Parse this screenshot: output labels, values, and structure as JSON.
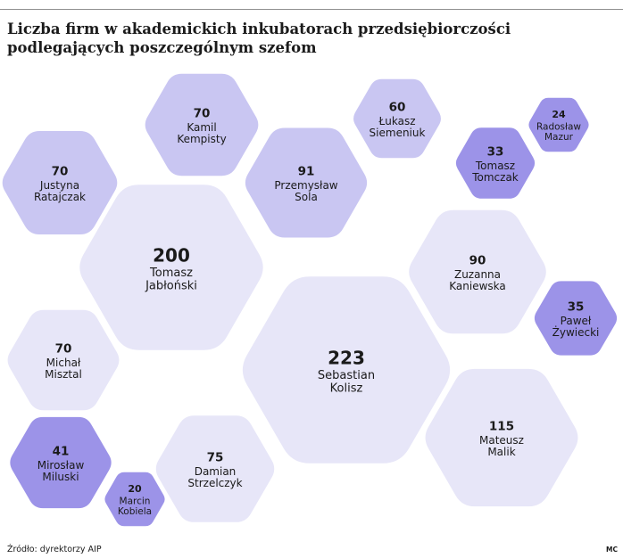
{
  "header": {
    "title_line1": "Liczba firm w akademickich inkubatorach przedsiębiorczości",
    "title_line2": "podlegających poszczególnym szefom"
  },
  "footer": {
    "source": "Źródło: dyrektorzy AIP",
    "credit": "MC"
  },
  "colors": {
    "small": "#9c93e8",
    "medium": "#c9c6f2",
    "large": "#e7e6f8",
    "text": "#1a1a1a"
  },
  "chart_data": {
    "type": "bubble-hexagon",
    "title": "Liczba firm w akademickich inkubatorach przedsiębiorczości podlegających poszczególnym szefom",
    "unit": "",
    "points": [
      {
        "value": 70,
        "name": [
          "Kamil",
          "Kempisty"
        ],
        "tier": "medium"
      },
      {
        "value": 60,
        "name": [
          "Łukasz",
          "Siemeniuk"
        ],
        "tier": "medium"
      },
      {
        "value": 24,
        "name": [
          "Radosław",
          "Mazur"
        ],
        "tier": "small"
      },
      {
        "value": 70,
        "name": [
          "Justyna",
          "Ratajczak"
        ],
        "tier": "medium"
      },
      {
        "value": 91,
        "name": [
          "Przemysław",
          "Sola"
        ],
        "tier": "medium"
      },
      {
        "value": 33,
        "name": [
          "Tomasz",
          "Tomczak"
        ],
        "tier": "small"
      },
      {
        "value": 200,
        "name": [
          "Tomasz",
          "Jabłoński"
        ],
        "tier": "large"
      },
      {
        "value": 90,
        "name": [
          "Zuzanna",
          "Kaniewska"
        ],
        "tier": "large"
      },
      {
        "value": 35,
        "name": [
          "Paweł",
          "Żywiecki"
        ],
        "tier": "small"
      },
      {
        "value": 223,
        "name": [
          "Sebastian",
          "Kolisz"
        ],
        "tier": "large"
      },
      {
        "value": 70,
        "name": [
          "Michał",
          "Misztal"
        ],
        "tier": "large"
      },
      {
        "value": 115,
        "name": [
          "Mateusz",
          "Malik"
        ],
        "tier": "large"
      },
      {
        "value": 41,
        "name": [
          "Mirosław",
          "Miluski"
        ],
        "tier": "small"
      },
      {
        "value": 75,
        "name": [
          "Damian",
          "Strzelczyk"
        ],
        "tier": "large"
      },
      {
        "value": 20,
        "name": [
          "Marcin",
          "Kobiela"
        ],
        "tier": "small"
      }
    ]
  }
}
